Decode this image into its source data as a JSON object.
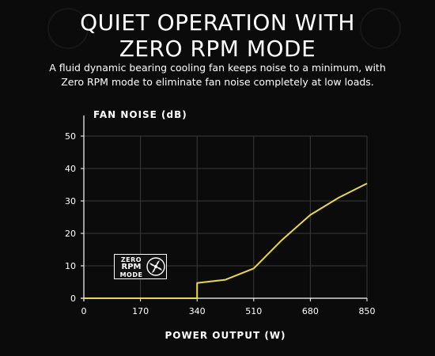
{
  "headline": {
    "line1": "QUIET OPERATION WITH",
    "line2": "ZERO RPM MODE"
  },
  "subtitle": {
    "line1": "A fluid dynamic bearing cooling fan keeps noise to a minimum, with",
    "line2": "Zero RPM mode to eliminate fan noise completely at low loads."
  },
  "badge": {
    "line1": "ZERO",
    "line2": "RPM",
    "line3": "MODE",
    "icon": "fan-icon"
  },
  "colors": {
    "line": "#e8dc3c",
    "grid": "#3a3a3a",
    "background": "#0b0b0b"
  },
  "chart_data": {
    "type": "line",
    "xlabel": "POWER OUTPUT (W)",
    "ylabel": "FAN NOISE (dB)",
    "xlim": [
      0,
      850
    ],
    "ylim": [
      0,
      50
    ],
    "xticks": [
      0,
      170,
      340,
      510,
      680,
      850
    ],
    "yticks": [
      0,
      10,
      20,
      30,
      40,
      50
    ],
    "grid": true,
    "series": [
      {
        "x": [
          0,
          340,
          340,
          425,
          510,
          595,
          680,
          765,
          850
        ],
        "y": [
          0,
          0,
          4.7,
          5.7,
          9.2,
          18,
          25.7,
          31,
          35.4
        ]
      }
    ]
  }
}
